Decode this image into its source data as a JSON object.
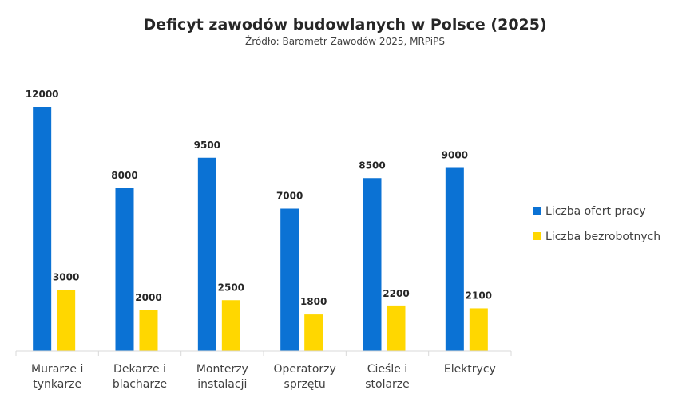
{
  "chart_data": {
    "type": "bar",
    "title": "Deficyt zawodów budowlanych w Polsce (2025)",
    "subtitle": "Źródło: Barometr Zawodów 2025, MRPiPS",
    "xlabel": "",
    "ylabel": "",
    "categories": [
      [
        "Murarze i",
        "tynkarze"
      ],
      [
        "Dekarze i",
        "blacharze"
      ],
      [
        "Monterzy",
        "instalacji"
      ],
      [
        "Operatorzy",
        "sprzętu"
      ],
      [
        "Cieśle i",
        "stolarze"
      ],
      [
        "Elektrycy"
      ]
    ],
    "series": [
      {
        "name": "Liczba ofert pracy",
        "color": "#0B72D4",
        "values": [
          12000,
          8000,
          9500,
          7000,
          8500,
          9000
        ]
      },
      {
        "name": "Liczba bezrobotnych",
        "color": "#FFD700",
        "values": [
          3000,
          2000,
          2500,
          1800,
          2200,
          2100
        ]
      }
    ],
    "ylim": [
      0,
      12000
    ],
    "grid": false,
    "legend_position": "right"
  }
}
